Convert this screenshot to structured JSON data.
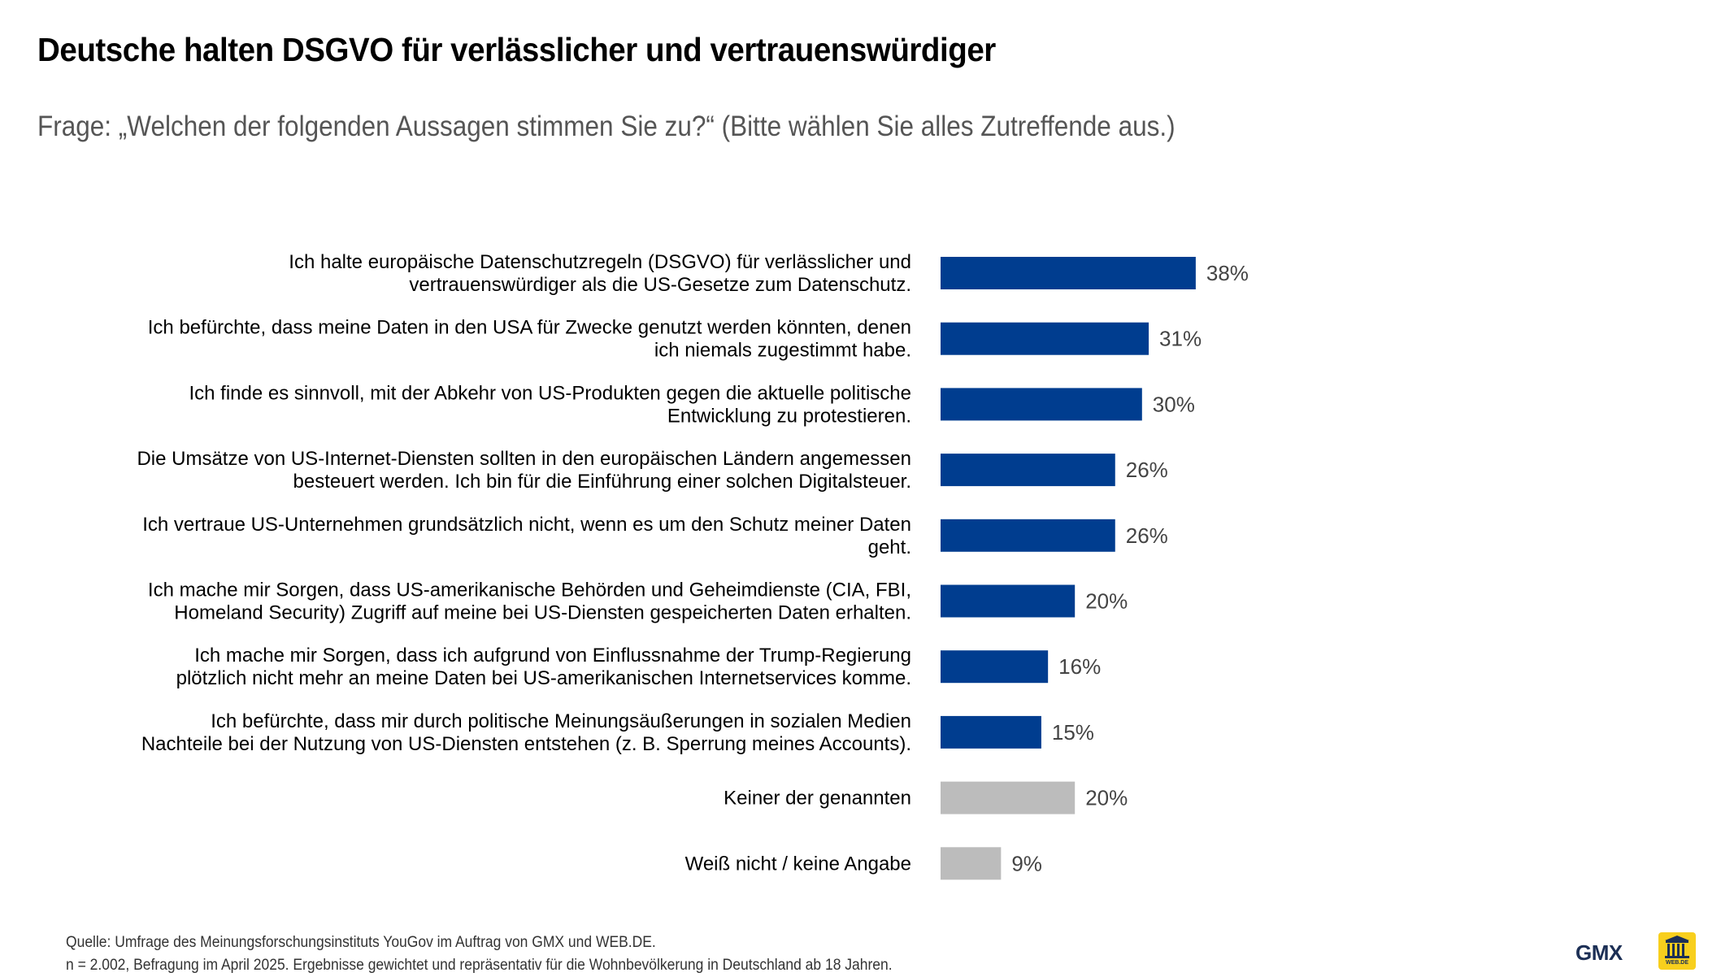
{
  "title": "Deutsche halten DSGVO für verlässlicher und vertrauenswürdiger",
  "subtitle": "Frage: „Welchen der folgenden Aussagen stimmen Sie zu?“ (Bitte wählen Sie alles Zutreffende aus.)",
  "footer": {
    "source": "Quelle: Umfrage des Meinungsforschungsinstituts YouGov im Auftrag von GMX und WEB.DE.",
    "note": "n = 2.002, Befragung im April 2025. Ergebnisse gewichtet und repräsentativ für die Wohnbevölkerung in Deutschland ab 18 Jahren."
  },
  "logos": {
    "gmx": "GMX",
    "webde": "WEB.DE"
  },
  "colors": {
    "primary_bar": "#003d8f",
    "secondary_bar": "#bcbcbc"
  },
  "chart_data": {
    "type": "bar",
    "orientation": "horizontal",
    "unit": "%",
    "xlim": [
      0,
      100
    ],
    "categories": [
      [
        "Ich halte europäische Datenschutzregeln (DSGVO) für verlässlicher und",
        "vertrauenswürdiger als die US-Gesetze zum Datenschutz."
      ],
      [
        "Ich befürchte, dass meine Daten in den USA für Zwecke genutzt werden könnten, denen",
        "ich niemals zugestimmt habe."
      ],
      [
        "Ich finde es sinnvoll, mit der Abkehr von US-Produkten gegen die aktuelle politische",
        "Entwicklung zu protestieren."
      ],
      [
        "Die Umsätze von US-Internet-Diensten sollten in den europäischen Ländern angemessen",
        "besteuert werden. Ich bin für die Einführung einer solchen Digitalsteuer."
      ],
      [
        "Ich vertraue US-Unternehmen grundsätzlich nicht, wenn es um den Schutz meiner Daten",
        "geht."
      ],
      [
        "Ich mache mir Sorgen, dass US-amerikanische Behörden und Geheimdienste (CIA, FBI,",
        "Homeland Security) Zugriff auf meine bei US-Diensten gespeicherten Daten erhalten."
      ],
      [
        "Ich mache mir Sorgen, dass ich aufgrund von Einflussnahme der Trump-Regierung",
        "plötzlich nicht mehr an meine Daten bei US-amerikanischen Internetservices komme."
      ],
      [
        "Ich befürchte, dass mir durch politische Meinungsäußerungen in sozialen Medien",
        "Nachteile bei der Nutzung von US-Diensten entstehen (z. B. Sperrung meines Accounts)."
      ],
      [
        "Keiner der genannten"
      ],
      [
        "Weiß nicht / keine Angabe"
      ]
    ],
    "values": [
      38,
      31,
      30,
      26,
      26,
      20,
      16,
      15,
      20,
      9
    ],
    "value_labels": [
      "38%",
      "31%",
      "30%",
      "26%",
      "26%",
      "20%",
      "16%",
      "15%",
      "20%",
      "9%"
    ],
    "bar_colors": [
      "#003d8f",
      "#003d8f",
      "#003d8f",
      "#003d8f",
      "#003d8f",
      "#003d8f",
      "#003d8f",
      "#003d8f",
      "#bcbcbc",
      "#bcbcbc"
    ],
    "axis_visible": false,
    "grid": false,
    "legend": false
  }
}
